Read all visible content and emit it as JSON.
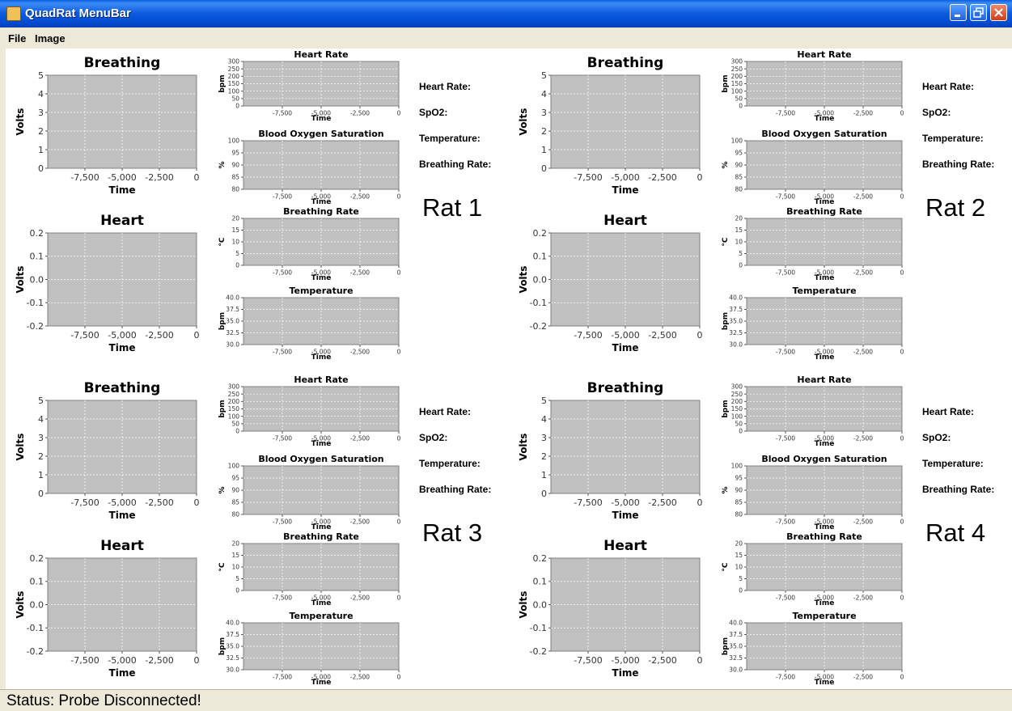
{
  "window": {
    "title": "QuadRat MenuBar",
    "app_icon": "java-cup-icon"
  },
  "menubar": {
    "items": [
      "File",
      "Image"
    ]
  },
  "charts": {
    "breathing": {
      "title": "Breathing",
      "xlabel": "Time",
      "ylabel": "Volts",
      "yticks": [
        "5",
        "4",
        "3",
        "2",
        "1",
        "0"
      ],
      "xticks": [
        "-7,500",
        "-5,000",
        "-2,500",
        "0"
      ]
    },
    "heart": {
      "title": "Heart",
      "xlabel": "Time",
      "ylabel": "Volts",
      "yticks": [
        "0.2",
        "0.1",
        "0.0",
        "-0.1",
        "-0.2"
      ],
      "xticks": [
        "-7,500",
        "-5,000",
        "-2,500",
        "0"
      ]
    },
    "heart_rate": {
      "title": "Heart Rate",
      "xlabel": "Time",
      "ylabel": "bpm",
      "yticks": [
        "300",
        "250",
        "200",
        "150",
        "100",
        "50",
        "0"
      ],
      "xticks": [
        "-7,500",
        "-5,000",
        "-2,500",
        "0"
      ]
    },
    "spo2": {
      "title": "Blood Oxygen Saturation",
      "xlabel": "Time",
      "ylabel": "%",
      "yticks": [
        "100",
        "95",
        "90",
        "85",
        "80"
      ],
      "xticks": [
        "-7,500",
        "-5,000",
        "-2,500",
        "0"
      ]
    },
    "breathing_rate": {
      "title": "Breathing Rate",
      "xlabel": "Time",
      "ylabel": "°C",
      "yticks": [
        "20",
        "15",
        "10",
        "5",
        "0"
      ],
      "xticks": [
        "-7,500",
        "-5,000",
        "-2,500",
        "0"
      ]
    },
    "temperature": {
      "title": "Temperature",
      "xlabel": "Time",
      "ylabel": "bpm",
      "yticks": [
        "40.0",
        "37.5",
        "35.0",
        "32.5",
        "30.0"
      ],
      "xticks": [
        "-7,500",
        "-5,000",
        "-2,500",
        "0"
      ]
    }
  },
  "vitals_labels": [
    "Heart Rate:",
    "SpO2:",
    "Temperature:",
    "Breathing Rate:"
  ],
  "rats": [
    {
      "label": "Rat 1"
    },
    {
      "label": "Rat 2"
    },
    {
      "label": "Rat 3"
    },
    {
      "label": "Rat 4"
    }
  ],
  "status": {
    "text": "Status: Probe Disconnected!"
  },
  "colors": {
    "plot_bg": "#c0c0c0",
    "gridline": "#ffffff",
    "titlebar": "#0a5fe0"
  }
}
